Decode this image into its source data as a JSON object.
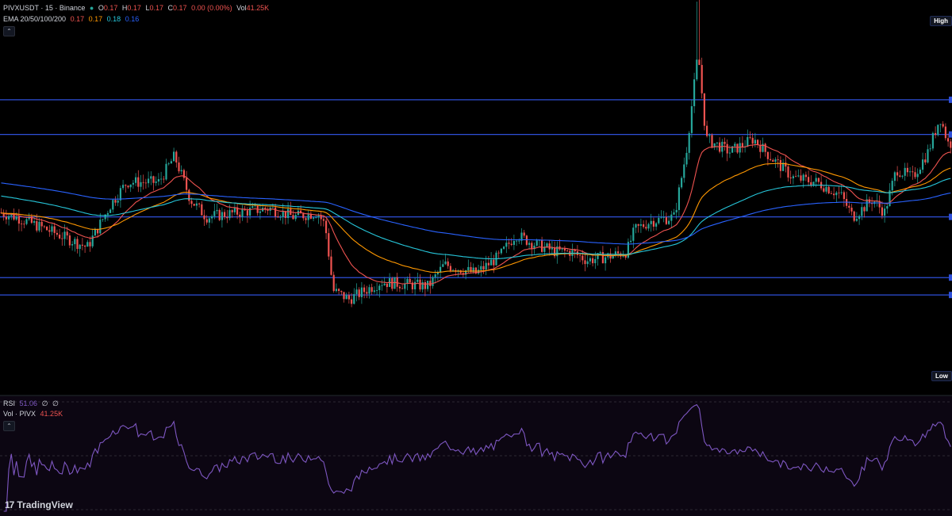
{
  "header": {
    "symbol": "PIVXUSDT",
    "interval": "15",
    "exchange": "Binance",
    "title": "PIVXUSDT · 15 · Binance",
    "ohlc": {
      "O": "0.17",
      "H": "0.17",
      "L": "0.17",
      "C": "0.17",
      "change": "0.00 (0.00%)",
      "vol": "41.25K"
    }
  },
  "ema_legend": {
    "label": "EMA 20/50/100/200",
    "v20": "0.17",
    "v50": "0.17",
    "v100": "0.18",
    "v200": "0.16"
  },
  "rsi_legend": {
    "label": "RSI",
    "value": "51.06",
    "extra1": "∅",
    "extra2": "∅"
  },
  "vol_legend": {
    "label": "Vol · PIVX",
    "value": "41.25K"
  },
  "tags": {
    "high": "High",
    "low": "Low"
  },
  "brand": {
    "name": "TradingView",
    "mark": "17"
  },
  "colors": {
    "up": "#26a69a",
    "down": "#ef5350",
    "ema20": "#ef5350",
    "ema50": "#ff9800",
    "ema100": "#26c6da",
    "ema200": "#2962ff",
    "hline": "#2e4fd8",
    "rsi": "#7e57c2"
  },
  "chart_data": {
    "type": "candlestick",
    "price_ylim": [
      0.137,
      0.228
    ],
    "horizontal_levels": [
      0.205,
      0.197,
      0.178,
      0.164,
      0.16
    ],
    "keypoints": [
      [
        0,
        0.179
      ],
      [
        20,
        0.178
      ],
      [
        60,
        0.175
      ],
      [
        110,
        0.171
      ],
      [
        140,
        0.181
      ],
      [
        160,
        0.186
      ],
      [
        200,
        0.186
      ],
      [
        220,
        0.192
      ],
      [
        240,
        0.182
      ],
      [
        260,
        0.178
      ],
      [
        300,
        0.179
      ],
      [
        340,
        0.18
      ],
      [
        370,
        0.178
      ],
      [
        400,
        0.179
      ],
      [
        410,
        0.176
      ],
      [
        420,
        0.161
      ],
      [
        440,
        0.159
      ],
      [
        480,
        0.163
      ],
      [
        540,
        0.162
      ],
      [
        560,
        0.167
      ],
      [
        600,
        0.165
      ],
      [
        630,
        0.169
      ],
      [
        650,
        0.174
      ],
      [
        670,
        0.172
      ],
      [
        700,
        0.17
      ],
      [
        720,
        0.17
      ],
      [
        740,
        0.168
      ],
      [
        770,
        0.169
      ],
      [
        790,
        0.17
      ],
      [
        800,
        0.175
      ],
      [
        820,
        0.177
      ],
      [
        850,
        0.178
      ],
      [
        865,
        0.193
      ],
      [
        880,
        0.216
      ],
      [
        890,
        0.196
      ],
      [
        920,
        0.193
      ],
      [
        950,
        0.196
      ],
      [
        970,
        0.192
      ],
      [
        1000,
        0.187
      ],
      [
        1030,
        0.186
      ],
      [
        1060,
        0.183
      ],
      [
        1075,
        0.178
      ],
      [
        1100,
        0.182
      ],
      [
        1115,
        0.179
      ],
      [
        1130,
        0.189
      ],
      [
        1150,
        0.187
      ],
      [
        1170,
        0.193
      ],
      [
        1185,
        0.201
      ],
      [
        1195,
        0.195
      ]
    ],
    "ema_periods": [
      20,
      50,
      100,
      200
    ]
  }
}
